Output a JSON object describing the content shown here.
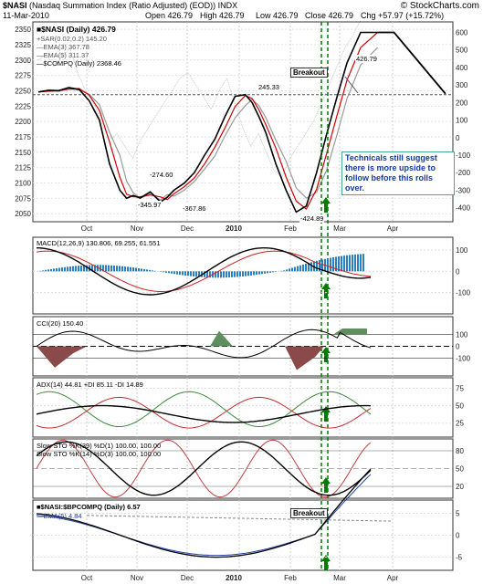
{
  "header": {
    "symbol": "$NASI",
    "title": "(Nasdaq Summation Index (Ratio Adjusted) (EOD))",
    "index": "INDX",
    "date": "11-Mar-2010",
    "open": "Open 426.79",
    "high": "High 426.79",
    "low": "Low 426.79",
    "close": "Close 426.79",
    "chg": "Chg +57.97 (+15.72%)",
    "chg_arrow": "▲",
    "brand": "© StockCharts.com"
  },
  "legend": {
    "main": "■$NASI (Daily) 426.79",
    "sar": "+SAR(0.02,0.2) 145.20",
    "ema3": "—EMA(3) 367.78",
    "ema5": "—EMA(5) 311.37",
    "compq": "—$COMPQ (Daily) 2368.46",
    "macd": "MACD(12,26,9) 130.806, 69.255, 61.551",
    "cci": "CCI(20) 150.40",
    "adx": "ADX(14) 44.81 +DI 85.11 -DI 14.89",
    "sto1": "Slow STO %K(39) %D(1) 100.00, 100.00",
    "sto2": "Slow STO %K(14) %D(3) 100.00, 100.00",
    "ratio": "■$NASI:$BPCOMPQ (Daily) 6.57",
    "ratio_ema": "—EMA(5) 4.84"
  },
  "annotations": {
    "breakout1": "Breakout",
    "breakout2": "Breakout",
    "callout": "Technicals still suggest there is more upside to follow before this rolls over.",
    "v245": "245.33",
    "v274": "-274.60",
    "v345": "-345.97",
    "v367": "-367.86",
    "v424": "-424.89",
    "v426": "426.79"
  },
  "colors": {
    "price": "#000000",
    "ema3": "#d40000",
    "ema5": "#9a9a9a",
    "compq": "#bbbbbb",
    "histogram": "#2a7fc0",
    "cci_pos": "#5f8f5f",
    "cci_neg": "#8a4a4a",
    "di_plus": "#3a8a3a",
    "di_minus": "#c03030",
    "breakout": "#007a00"
  },
  "chart_data": [
    {
      "type": "line",
      "title": "$NASI (Nasdaq Summation Index (Ratio Adjusted) (EOD))",
      "x_labels": [
        "Oct",
        "Nov",
        "Dec",
        "2010",
        "Feb",
        "Mar",
        "Apr"
      ],
      "y_left_ticks": [
        2050,
        2075,
        2100,
        2125,
        2150,
        2175,
        2200,
        2225,
        2250,
        2275,
        2300,
        2325,
        2350
      ],
      "y_right_ticks": [
        -400,
        -300,
        -200,
        -100,
        0,
        100,
        200,
        300,
        400,
        500,
        600
      ],
      "ylim_right": [
        -480,
        660
      ],
      "series": [
        {
          "name": "$NASI (Daily)",
          "x": [
            0,
            3,
            6,
            9,
            12,
            15,
            18,
            21,
            24,
            26,
            28,
            30,
            33,
            36,
            38,
            40,
            43,
            46,
            49,
            52,
            55,
            58,
            61,
            63,
            65,
            67
          ],
          "values": [
            260,
            270,
            268,
            285,
            275,
            210,
            100,
            -150,
            -300,
            -346,
            -330,
            -345,
            -310,
            -367,
            -340,
            -300,
            -260,
            -200,
            -100,
            -10,
            120,
            235,
            245,
            200,
            120,
            30
          ]
        },
        {
          "name": "$NASI (Daily)",
          "x": [
            67,
            70,
            73,
            76,
            79,
            82,
            85,
            88,
            91,
            95,
            100
          ],
          "values": [
            30,
            -150,
            -300,
            -425,
            -390,
            -200,
            20,
            230,
            427,
            600,
            600
          ]
        }
      ],
      "projection": {
        "x": [
          100,
          120
        ],
        "values": [
          600,
          250
        ]
      },
      "horizontal_ref": 245
    },
    {
      "type": "line",
      "title": "MACD(12,26,9)",
      "series": [
        {
          "name": "MACD",
          "value": 130.806
        },
        {
          "name": "Signal",
          "value": 69.255
        },
        {
          "name": "Histogram",
          "value": 61.551
        }
      ]
    },
    {
      "type": "line",
      "title": "CCI(20)",
      "value": 150.4,
      "y_ticks": [
        -100,
        0,
        100
      ]
    },
    {
      "type": "line",
      "title": "ADX(14)",
      "series": [
        {
          "name": "ADX",
          "value": 44.81
        },
        {
          "name": "+DI",
          "value": 85.11
        },
        {
          "name": "-DI",
          "value": 14.89
        }
      ],
      "y_ticks": [
        25,
        50,
        75
      ]
    },
    {
      "type": "line",
      "title": "Slow STO",
      "series": [
        {
          "name": "%K(39) %D(1)",
          "value": 100.0
        },
        {
          "name": "%K(14) %D(3)",
          "value": 100.0
        }
      ],
      "y_ticks": [
        20,
        50,
        80
      ]
    },
    {
      "type": "line",
      "title": "$NASI:$BPCOMPQ (Daily)",
      "series": [
        {
          "name": "$NASI:$BPCOMPQ",
          "value": 6.57
        },
        {
          "name": "EMA(5)",
          "value": 4.84
        }
      ],
      "y_ticks": [
        -5,
        0,
        5
      ]
    }
  ]
}
